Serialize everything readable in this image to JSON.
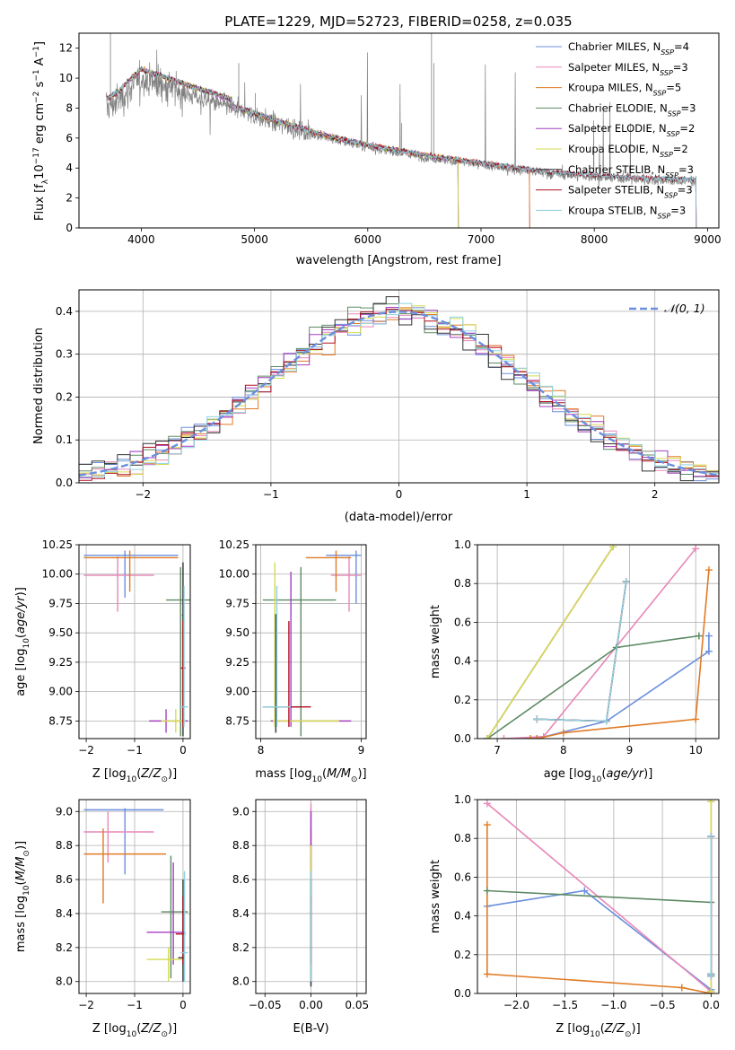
{
  "colors": {
    "series": [
      "#6a8fde",
      "#e887b8",
      "#e07b25",
      "#5d8a63",
      "#a43fc0",
      "#d4dc50",
      "#333333",
      "#b01020",
      "#8fd0e0"
    ],
    "grid": "#b0b0b0",
    "spectrum": "#808080",
    "normal_curve": "#6a8fde"
  },
  "legend_entries": [
    "Chabrier MILES, N_SSP=4",
    "Salpeter MILES, N_SSP=3",
    "Kroupa MILES, N_SSP=5",
    "Chabrier ELODIE, N_SSP=3",
    "Salpeter ELODIE, N_SSP=2",
    "Kroupa ELODIE, N_SSP=2",
    "Chabrier STELIB, N_SSP=3",
    "Salpeter STELIB, N_SSP=3",
    "Kroupa STELIB, N_SSP=3"
  ],
  "chart_data": [
    {
      "id": "spectrum",
      "type": "line",
      "title": "PLATE=1229, MJD=52723, FIBERID=0258, z=0.035",
      "xlabel": "wavelength [Angstrom, rest frame]",
      "ylabel": "Flux [f_λ 10^-17 erg cm^-2 s^-1 A^-1]",
      "xlim": [
        3450,
        9100
      ],
      "ylim": [
        0,
        13
      ],
      "xticks": [
        4000,
        5000,
        6000,
        7000,
        8000,
        9000
      ],
      "yticks": [
        0,
        2,
        4,
        6,
        8,
        10,
        12
      ],
      "legend_position": "top-right",
      "data_continuum": {
        "x": [
          3690,
          3800,
          3900,
          4000,
          4200,
          4500,
          4800,
          5000,
          5200,
          5500,
          5800,
          6000,
          6300,
          6600,
          6800,
          7000,
          7200,
          7400,
          7600,
          7800,
          8000,
          8200,
          8500,
          8800
        ],
        "y": [
          8.0,
          8.5,
          9.3,
          10.0,
          9.5,
          8.7,
          8.0,
          7.5,
          7.0,
          6.3,
          5.7,
          5.4,
          5.0,
          4.6,
          4.4,
          4.2,
          4.0,
          3.8,
          3.6,
          3.5,
          3.4,
          3.3,
          3.2,
          3.1
        ]
      },
      "model_extent": {
        "MILES": [
          3700,
          7430
        ],
        "ELODIE": [
          3700,
          6800
        ],
        "STELIB": [
          3700,
          8900
        ]
      }
    },
    {
      "id": "residuals",
      "type": "histogram",
      "xlabel": "(data-model)/error",
      "ylabel": "Normed distribution",
      "xlim": [
        -2.5,
        2.5
      ],
      "ylim": [
        0,
        0.45
      ],
      "xticks": [
        -2,
        -1,
        0,
        1,
        2
      ],
      "yticks": [
        0.0,
        0.1,
        0.2,
        0.3,
        0.4
      ],
      "legend_position": "top-right",
      "normal_label": "N(0,1)",
      "bin_width": 0.1,
      "bin_start": -2.5
    },
    {
      "id": "age_vs_Z",
      "type": "errorbar",
      "xlabel": "Z [log10(Z/Z⊙)]",
      "ylabel": "age [log10(age/yr)]",
      "xlim": [
        -2.15,
        0.15
      ],
      "ylim": [
        8.6,
        10.25
      ],
      "xticks": [
        -2,
        -1,
        0
      ],
      "yticks": [
        8.75,
        9.0,
        9.25,
        9.5,
        9.75,
        10.0,
        10.25
      ],
      "bars": [
        {
          "s": 0,
          "x": -1.2,
          "y": 10.16,
          "x0": -2.05,
          "x1": -0.1,
          "y0": 9.8,
          "y1": 10.2
        },
        {
          "s": 1,
          "x": -1.35,
          "y": 9.99,
          "x0": -2.05,
          "x1": -0.6,
          "y0": 9.68,
          "y1": 10.15
        },
        {
          "s": 2,
          "x": -1.1,
          "y": 10.14,
          "x0": -2.05,
          "x1": -0.1,
          "y0": 9.85,
          "y1": 10.2
        },
        {
          "s": 3,
          "x": -0.05,
          "y": 9.78,
          "x0": -0.35,
          "x1": 0.15,
          "y0": 8.62,
          "y1": 10.06
        },
        {
          "s": 4,
          "x": -0.35,
          "y": 8.75,
          "x0": -0.7,
          "x1": 0.1,
          "y0": 8.65,
          "y1": 8.85
        },
        {
          "s": 5,
          "x": -0.15,
          "y": 8.75,
          "x0": -0.45,
          "x1": 0.05,
          "y0": 8.65,
          "y1": 8.85
        },
        {
          "s": 6,
          "x": 0.0,
          "y": 9.65,
          "x0": -0.02,
          "x1": 0.02,
          "y0": 8.62,
          "y1": 10.1
        },
        {
          "s": 7,
          "x": 0.0,
          "y": 9.2,
          "x0": -0.05,
          "x1": 0.05,
          "y0": 8.7,
          "y1": 9.6
        },
        {
          "s": 8,
          "x": 0.02,
          "y": 8.87,
          "x0": -0.05,
          "x1": 0.1,
          "y0": 8.7,
          "y1": 9.9
        }
      ]
    },
    {
      "id": "age_vs_mass",
      "type": "errorbar",
      "xlabel": "mass [log10(M/M⊙)]",
      "ylabel": "",
      "xlim": [
        7.95,
        9.05
      ],
      "ylim": [
        8.6,
        10.25
      ],
      "xticks": [
        8,
        9
      ],
      "yticks": [
        8.75,
        9.0,
        9.25,
        9.5,
        9.75,
        10.0,
        10.25
      ],
      "bars": [
        {
          "s": 0,
          "x": 8.95,
          "y": 10.16,
          "x0": 8.65,
          "x1": 9.0,
          "y0": 9.75,
          "y1": 10.2
        },
        {
          "s": 1,
          "x": 8.88,
          "y": 9.99,
          "x0": 8.7,
          "x1": 9.0,
          "y0": 9.68,
          "y1": 10.15
        },
        {
          "s": 2,
          "x": 8.75,
          "y": 10.14,
          "x0": 8.45,
          "x1": 8.9,
          "y0": 9.85,
          "y1": 10.2
        },
        {
          "s": 3,
          "x": 8.4,
          "y": 9.78,
          "x0": 8.02,
          "x1": 8.75,
          "y0": 8.62,
          "y1": 10.06
        },
        {
          "s": 4,
          "x": 8.3,
          "y": 8.75,
          "x0": 8.1,
          "x1": 8.9,
          "y0": 8.7,
          "y1": 10.02
        },
        {
          "s": 5,
          "x": 8.14,
          "y": 8.75,
          "x0": 8.12,
          "x1": 8.78,
          "y0": 8.7,
          "y1": 10.1
        },
        {
          "s": 6,
          "x": 8.15,
          "y": 8.87,
          "x0": 8.02,
          "x1": 8.4,
          "y0": 8.65,
          "y1": 9.66
        },
        {
          "s": 7,
          "x": 8.28,
          "y": 8.87,
          "x0": 8.12,
          "x1": 8.5,
          "y0": 8.7,
          "y1": 9.6
        },
        {
          "s": 8,
          "x": 8.16,
          "y": 8.87,
          "x0": 8.02,
          "x1": 8.3,
          "y0": 8.7,
          "y1": 9.9
        }
      ]
    },
    {
      "id": "weight_vs_age",
      "type": "line",
      "xlabel": "age [log10(age/yr)]",
      "ylabel": "mass weight",
      "xlim": [
        6.7,
        10.35
      ],
      "ylim": [
        0,
        1
      ],
      "xticks": [
        7,
        8,
        9,
        10
      ],
      "yticks": [
        0.0,
        0.2,
        0.4,
        0.6,
        0.8,
        1.0
      ],
      "series": [
        {
          "s": 0,
          "x": [
            7.6,
            8.65,
            10.2,
            10.2
          ],
          "y": [
            0.0,
            0.09,
            0.45,
            0.53
          ]
        },
        {
          "s": 1,
          "x": [
            7.1,
            7.7,
            10.0
          ],
          "y": [
            0.0,
            0.01,
            0.98
          ]
        },
        {
          "s": 2,
          "x": [
            7.5,
            7.6,
            8.0,
            10.0,
            10.2
          ],
          "y": [
            0.0,
            0.0,
            0.03,
            0.1,
            0.87
          ]
        },
        {
          "s": 3,
          "x": [
            6.85,
            8.8,
            10.05
          ],
          "y": [
            0.0,
            0.47,
            0.53
          ]
        },
        {
          "s": 4,
          "x": [
            6.85,
            8.75
          ],
          "y": [
            0.0,
            0.99
          ]
        },
        {
          "s": 5,
          "x": [
            6.85,
            8.75
          ],
          "y": [
            0.0,
            0.99
          ]
        },
        {
          "s": 6,
          "x": [
            7.6,
            8.65,
            8.95
          ],
          "y": [
            0.1,
            0.09,
            0.81
          ]
        },
        {
          "s": 7,
          "x": [
            7.6,
            8.65,
            8.95
          ],
          "y": [
            0.1,
            0.09,
            0.81
          ]
        },
        {
          "s": 8,
          "x": [
            7.6,
            8.65,
            8.95
          ],
          "y": [
            0.1,
            0.09,
            0.81
          ]
        }
      ]
    },
    {
      "id": "mass_vs_Z",
      "type": "errorbar",
      "xlabel": "Z [log10(Z/Z⊙)]",
      "ylabel": "mass [log10(M/M⊙)]",
      "xlim": [
        -2.15,
        0.15
      ],
      "ylim": [
        7.93,
        9.07
      ],
      "xticks": [
        -2,
        -1,
        0
      ],
      "yticks": [
        8.0,
        8.2,
        8.4,
        8.6,
        8.8,
        9.0
      ],
      "bars": [
        {
          "s": 0,
          "x": -1.2,
          "y": 9.01,
          "x0": -2.05,
          "x1": -0.4,
          "y0": 8.63,
          "y1": 9.02
        },
        {
          "s": 1,
          "x": -1.55,
          "y": 8.88,
          "x0": -2.05,
          "x1": -0.6,
          "y0": 8.7,
          "y1": 9.0
        },
        {
          "s": 2,
          "x": -1.65,
          "y": 8.75,
          "x0": -2.05,
          "x1": -0.35,
          "y0": 8.46,
          "y1": 8.9
        },
        {
          "s": 3,
          "x": -0.25,
          "y": 8.41,
          "x0": -0.45,
          "x1": 0.1,
          "y0": 8.02,
          "y1": 8.74
        },
        {
          "s": 4,
          "x": -0.2,
          "y": 8.29,
          "x0": -0.75,
          "x1": 0.05,
          "y0": 8.1,
          "y1": 8.7
        },
        {
          "s": 5,
          "x": -0.3,
          "y": 8.13,
          "x0": -0.75,
          "x1": 0.0,
          "y0": 8.0,
          "y1": 8.2
        },
        {
          "s": 6,
          "x": 0.0,
          "y": 8.14,
          "x0": -0.1,
          "x1": 0.02,
          "y0": 8.0,
          "y1": 8.6
        },
        {
          "s": 7,
          "x": 0.0,
          "y": 8.28,
          "x0": -0.15,
          "x1": 0.05,
          "y0": 8.1,
          "y1": 8.5
        },
        {
          "s": 8,
          "x": 0.03,
          "y": 8.17,
          "x0": -0.05,
          "x1": 0.1,
          "y0": 8.0,
          "y1": 8.65
        }
      ]
    },
    {
      "id": "mass_vs_ebv",
      "type": "errorbar",
      "xlabel": "E(B-V)",
      "ylabel": "",
      "xlim": [
        -0.06,
        0.06
      ],
      "ylim": [
        7.93,
        9.07
      ],
      "xticks": [
        -0.05,
        0.0,
        0.05
      ],
      "yticks": [
        8.0,
        8.2,
        8.4,
        8.6,
        8.8,
        9.0
      ],
      "bars": [
        {
          "s": 0,
          "x": 0.0,
          "y": 9.01,
          "x0": 0.0,
          "x1": 0.0,
          "y0": 8.63,
          "y1": 9.02
        },
        {
          "s": 1,
          "x": 0.0,
          "y": 8.88,
          "x0": 0.0,
          "x1": 0.0,
          "y0": 8.7,
          "y1": 9.05
        },
        {
          "s": 2,
          "x": 0.0,
          "y": 8.75,
          "x0": 0.0,
          "x1": 0.0,
          "y0": 8.46,
          "y1": 8.9
        },
        {
          "s": 3,
          "x": 0.0,
          "y": 8.41,
          "x0": 0.0,
          "x1": 0.0,
          "y0": 7.98,
          "y1": 8.74
        },
        {
          "s": 4,
          "x": 0.0,
          "y": 8.29,
          "x0": 0.0,
          "x1": 0.0,
          "y0": 8.1,
          "y1": 9.0
        },
        {
          "s": 5,
          "x": 0.0,
          "y": 8.13,
          "x0": 0.0,
          "x1": 0.0,
          "y0": 8.0,
          "y1": 8.8
        },
        {
          "s": 6,
          "x": 0.0,
          "y": 8.14,
          "x0": 0.0,
          "x1": 0.0,
          "y0": 7.97,
          "y1": 8.6
        },
        {
          "s": 7,
          "x": 0.0,
          "y": 8.28,
          "x0": 0.0,
          "x1": 0.0,
          "y0": 8.1,
          "y1": 8.5
        },
        {
          "s": 8,
          "x": 0.0,
          "y": 8.17,
          "x0": 0.0,
          "x1": 0.0,
          "y0": 8.0,
          "y1": 8.65
        }
      ]
    },
    {
      "id": "weight_vs_Z",
      "type": "line",
      "xlabel": "Z [log10(Z/Z⊙)]",
      "ylabel": "mass weight",
      "xlim": [
        -2.4,
        0.08
      ],
      "ylim": [
        0,
        1
      ],
      "xticks": [
        -2.0,
        -1.5,
        -1.0,
        -0.5,
        0.0
      ],
      "yticks": [
        0.0,
        0.2,
        0.4,
        0.6,
        0.8,
        1.0
      ],
      "series": [
        {
          "s": 0,
          "x": [
            -2.3,
            -1.3,
            0.0
          ],
          "y": [
            0.45,
            0.53,
            0.02
          ]
        },
        {
          "s": 1,
          "x": [
            -2.3,
            0.0
          ],
          "y": [
            0.98,
            0.01
          ]
        },
        {
          "s": 2,
          "x": [
            -2.3,
            -2.3,
            -0.3,
            0.0
          ],
          "y": [
            0.87,
            0.1,
            0.03,
            0.0
          ]
        },
        {
          "s": 3,
          "x": [
            -2.3,
            0.0
          ],
          "y": [
            0.53,
            0.47
          ]
        },
        {
          "s": 4,
          "x": [
            0.0,
            0.0
          ],
          "y": [
            0.01,
            0.99
          ]
        },
        {
          "s": 5,
          "x": [
            0.0,
            0.0
          ],
          "y": [
            0.01,
            0.99
          ]
        },
        {
          "s": 6,
          "x": [
            0.0,
            0.0,
            0.0
          ],
          "y": [
            0.1,
            0.09,
            0.81
          ]
        },
        {
          "s": 7,
          "x": [
            0.0,
            0.0,
            0.0
          ],
          "y": [
            0.1,
            0.09,
            0.81
          ]
        },
        {
          "s": 8,
          "x": [
            0.0,
            0.0,
            0.0
          ],
          "y": [
            0.1,
            0.09,
            0.81
          ]
        }
      ]
    }
  ]
}
